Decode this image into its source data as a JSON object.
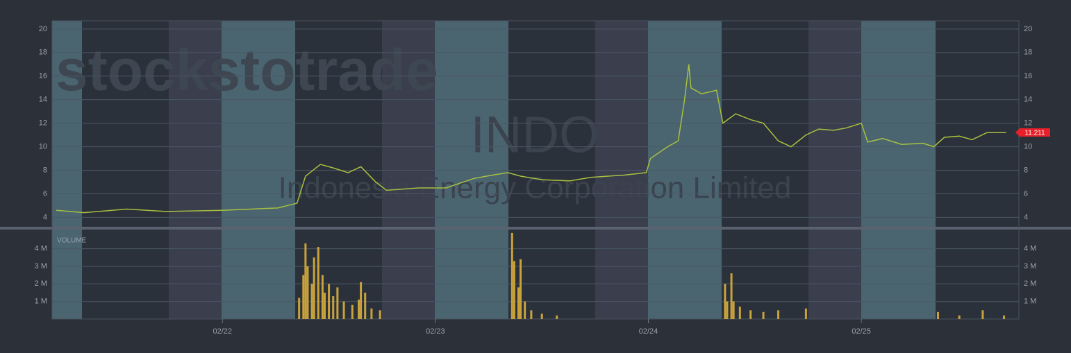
{
  "brand_watermark": "stockstotrade",
  "ticker": "INDO",
  "company": "Indonesia Energy Corporation Limited",
  "chart_data": [
    {
      "type": "line",
      "color": "#a8c040",
      "x": [
        21.22,
        21.35,
        21.55,
        21.74,
        22.0,
        22.26,
        22.35,
        22.39,
        22.46,
        22.52,
        22.59,
        22.65,
        22.72,
        22.77,
        22.92,
        23.05,
        23.18,
        23.24,
        23.34,
        23.4,
        23.5,
        23.63,
        23.73,
        23.89,
        23.99,
        24.01,
        24.09,
        24.14,
        24.17,
        24.19,
        24.2,
        24.25,
        24.32,
        24.35,
        24.41,
        24.48,
        24.54,
        24.61,
        24.67,
        24.74,
        24.8,
        24.87,
        24.93,
        25.0,
        25.03,
        25.1,
        25.19,
        25.29,
        25.34,
        25.39,
        25.46,
        25.52,
        25.59,
        25.68
      ],
      "values": [
        4.6,
        4.4,
        4.7,
        4.5,
        4.6,
        4.8,
        5.2,
        7.5,
        8.5,
        8.2,
        7.8,
        8.3,
        7.0,
        6.3,
        6.5,
        6.5,
        7.3,
        7.5,
        7.8,
        7.5,
        7.2,
        7.1,
        7.4,
        7.6,
        7.8,
        9.0,
        10.0,
        10.5,
        14.0,
        17.0,
        15.0,
        14.5,
        14.8,
        12.0,
        12.8,
        12.3,
        12.0,
        10.5,
        10.0,
        11.0,
        11.5,
        11.4,
        11.6,
        12.0,
        10.4,
        10.7,
        10.2,
        10.3,
        10.0,
        10.8,
        10.9,
        10.6,
        11.2,
        11.2
      ],
      "last_value": 11.211,
      "last_color": "#e8202a",
      "xlim": [
        21.2,
        25.74
      ],
      "ylim": [
        3.2,
        20.7
      ],
      "yticks": [
        4,
        6,
        8,
        10,
        12,
        14,
        16,
        18,
        20
      ],
      "grid": true
    },
    {
      "type": "bar",
      "title": "VOLUME",
      "color": "#c9a23a",
      "x": [
        22.36,
        22.38,
        22.39,
        22.4,
        22.42,
        22.43,
        22.45,
        22.47,
        22.48,
        22.5,
        22.52,
        22.54,
        22.57,
        22.61,
        22.64,
        22.65,
        22.67,
        22.7,
        22.74,
        23.36,
        23.37,
        23.39,
        23.4,
        23.42,
        23.45,
        23.5,
        23.57,
        24.36,
        24.37,
        24.39,
        24.4,
        24.43,
        24.48,
        24.54,
        24.61,
        24.74,
        25.36,
        25.46,
        25.57,
        25.67
      ],
      "values": [
        1200000,
        2500000,
        4300000,
        3000000,
        2000000,
        3500000,
        4100000,
        2500000,
        1500000,
        2000000,
        1300000,
        1800000,
        1000000,
        800000,
        1100000,
        2100000,
        1500000,
        600000,
        500000,
        4900000,
        3300000,
        1800000,
        3400000,
        1000000,
        500000,
        300000,
        200000,
        2000000,
        1000000,
        2600000,
        1000000,
        700000,
        500000,
        400000,
        500000,
        600000,
        400000,
        200000,
        500000,
        200000
      ],
      "xlim": [
        21.2,
        25.74
      ],
      "xticks": [
        {
          "value": 22,
          "label": "02/22"
        },
        {
          "value": 23,
          "label": "02/23"
        },
        {
          "value": 24,
          "label": "02/24"
        },
        {
          "value": 25,
          "label": "02/25"
        }
      ],
      "ylim": [
        0,
        5050000
      ],
      "yticks": [
        {
          "value": 1000000,
          "label": "1 M"
        },
        {
          "value": 2000000,
          "label": "2 M"
        },
        {
          "value": 3000000,
          "label": "3 M"
        },
        {
          "value": 4000000,
          "label": "4 M"
        }
      ],
      "grid": true
    }
  ]
}
